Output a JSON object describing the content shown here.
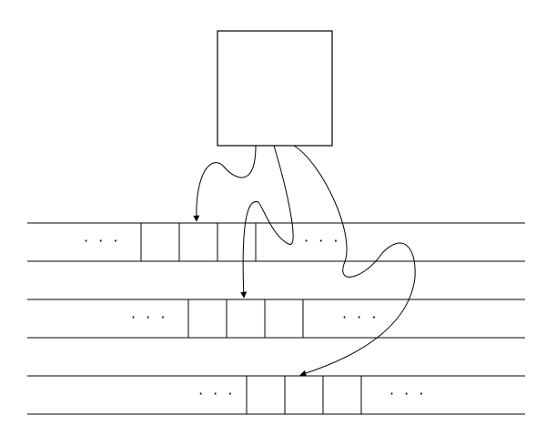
{
  "diagram": {
    "description_label": "pointer array diagram",
    "rows": [
      {
        "id": "row-1",
        "ellipsis_left": "· · ·",
        "ellipsis_right": "· · ·"
      },
      {
        "id": "row-2",
        "ellipsis_left": "· · ·",
        "ellipsis_right": "· · ·"
      },
      {
        "id": "row-3",
        "ellipsis_left": "· · ·",
        "ellipsis_right": "· · ·"
      }
    ],
    "arrows": [
      {
        "from": "source-box",
        "to": "row-1",
        "target_cell": 1
      },
      {
        "from": "source-box",
        "to": "row-2",
        "target_cell": 1
      },
      {
        "from": "source-box",
        "to": "row-3",
        "target_cell": 1
      }
    ],
    "colors": {
      "stroke": "#000000",
      "background": "#ffffff"
    }
  }
}
